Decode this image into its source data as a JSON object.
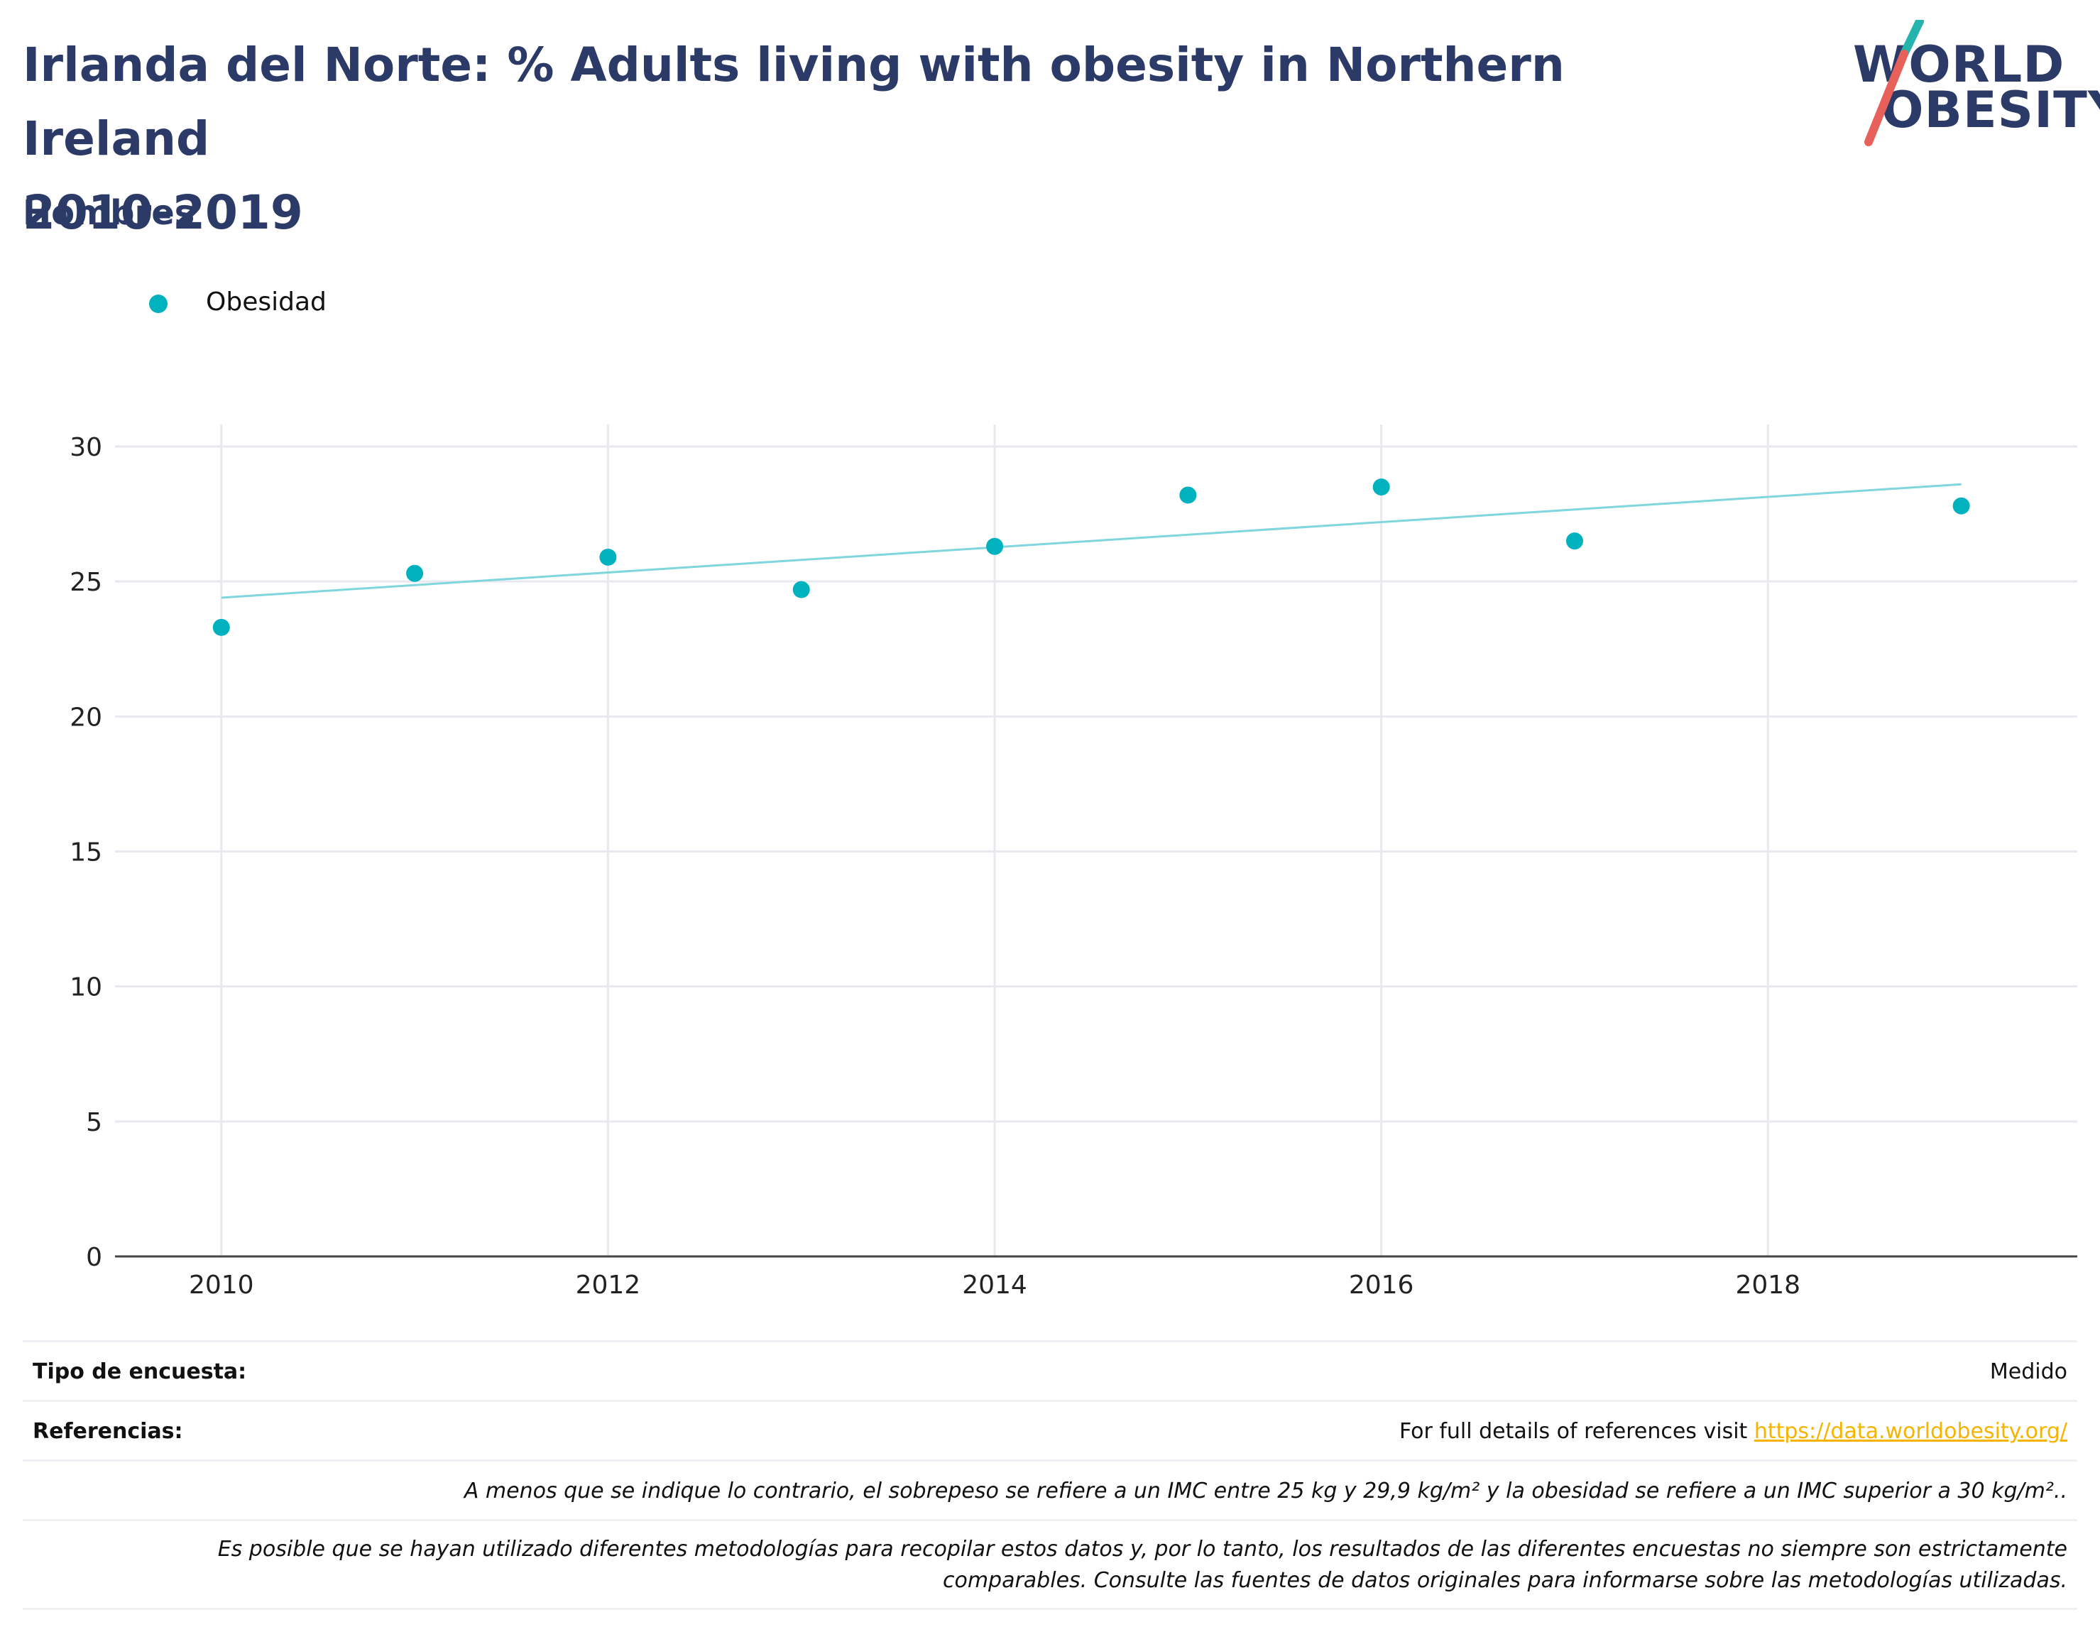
{
  "header": {
    "title_line1": "Irlanda del Norte: % Adults living with obesity in Northern Ireland",
    "title_line2": "2010-2019",
    "subtitle": "Hombres"
  },
  "logo": {
    "line1": "WORLD",
    "line2": "OBESITY"
  },
  "legend": {
    "label": "Obesidad"
  },
  "colors": {
    "point": "#00b2bd",
    "trend": "#7fd6dc",
    "title": "#2b3a67",
    "link": "#f5b400"
  },
  "chart_data": {
    "type": "scatter",
    "x": [
      2010,
      2011,
      2012,
      2013,
      2014,
      2015,
      2016,
      2017,
      2019
    ],
    "series": [
      {
        "name": "Obesidad",
        "values": [
          23.3,
          25.3,
          25.9,
          24.7,
          26.3,
          28.2,
          28.5,
          26.5,
          27.8
        ]
      }
    ],
    "trendline": {
      "x": [
        2010,
        2019
      ],
      "y": [
        24.4,
        28.6
      ]
    },
    "xticks": [
      "2010",
      "2012",
      "2014",
      "2016",
      "2018"
    ],
    "yticks": [
      "0",
      "5",
      "10",
      "15",
      "20",
      "25",
      "30"
    ],
    "xlim": [
      2009.45,
      2019.6
    ],
    "ylim": [
      0,
      30.5
    ],
    "grid": true
  },
  "info": {
    "survey_label": "Tipo de encuesta:",
    "survey_value": "Medido",
    "refs_label": "Referencias:",
    "refs_text": "For full details of references visit ",
    "refs_link": "https://data.worldobesity.org/",
    "note1": "A menos que se indique lo contrario, el sobrepeso se refiere a un IMC entre 25 kg y 29,9 kg/m² y la obesidad se refiere a un IMC superior a 30 kg/m²..",
    "note2_line1": "Es posible que se hayan utilizado diferentes metodologías para recopilar estos datos y, por lo tanto, los resultados de las diferentes encuestas no siempre son estrictamente",
    "note2_line2": "comparables. Consulte las fuentes de datos originales para informarse sobre las metodologías utilizadas."
  }
}
